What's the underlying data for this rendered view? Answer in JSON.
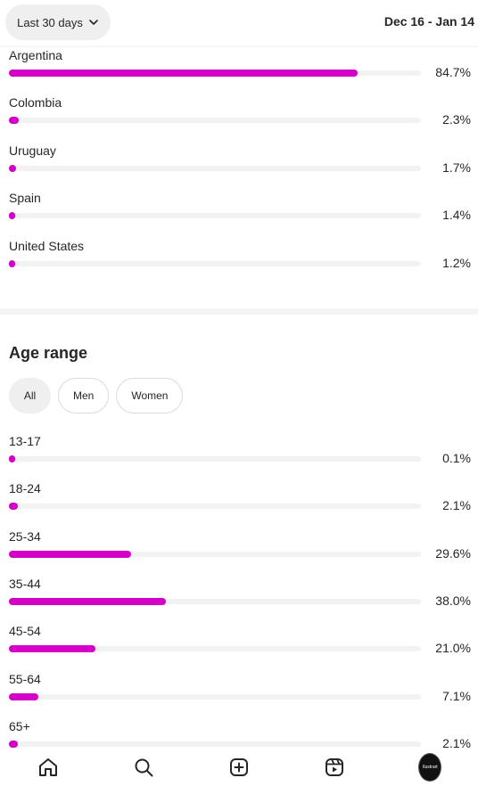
{
  "header": {
    "period_label": "Last 30 days",
    "date_range": "Dec 16 - Jan 14"
  },
  "countries": [
    {
      "label": "Argentina",
      "value": 84.7,
      "display": "84.7%"
    },
    {
      "label": "Colombia",
      "value": 2.3,
      "display": "2.3%"
    },
    {
      "label": "Uruguay",
      "value": 1.7,
      "display": "1.7%"
    },
    {
      "label": "Spain",
      "value": 1.4,
      "display": "1.4%"
    },
    {
      "label": "United States",
      "value": 1.2,
      "display": "1.2%"
    }
  ],
  "age_section": {
    "title": "Age range",
    "filters": [
      "All",
      "Men",
      "Women"
    ],
    "active_filter": "All"
  },
  "ages": [
    {
      "label": "13-17",
      "value": 0.1,
      "display": "0.1%"
    },
    {
      "label": "18-24",
      "value": 2.1,
      "display": "2.1%"
    },
    {
      "label": "25-34",
      "value": 29.6,
      "display": "29.6%"
    },
    {
      "label": "35-44",
      "value": 38.0,
      "display": "38.0%"
    },
    {
      "label": "45-54",
      "value": 21.0,
      "display": "21.0%"
    },
    {
      "label": "55-64",
      "value": 7.1,
      "display": "7.1%"
    },
    {
      "label": "65+",
      "value": 2.1,
      "display": "2.1%"
    }
  ],
  "nav": {
    "items": [
      "home-icon",
      "search-icon",
      "create-icon",
      "reels-icon",
      "profile-avatar"
    ],
    "avatar_text": "Ilustrart"
  },
  "colors": {
    "accent": "#d400c8",
    "track": "#f2f2f2"
  }
}
